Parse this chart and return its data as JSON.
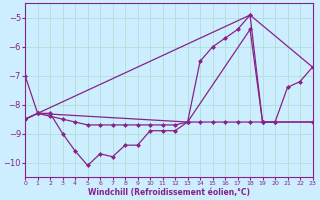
{
  "xlabel": "Windchill (Refroidissement éolien,°C)",
  "background_color": "#cceeff",
  "grid_color": "#aaddcc",
  "line_color": "#882288",
  "xlim": [
    0,
    23
  ],
  "ylim": [
    -10.5,
    -4.5
  ],
  "yticks": [
    -10,
    -9,
    -8,
    -7,
    -6,
    -5
  ],
  "xticks": [
    0,
    1,
    2,
    3,
    4,
    5,
    6,
    7,
    8,
    9,
    10,
    11,
    12,
    13,
    14,
    15,
    16,
    17,
    18,
    19,
    20,
    21,
    22,
    23
  ],
  "line1": {
    "points": [
      [
        0,
        -8.5
      ],
      [
        1,
        -8.3
      ],
      [
        18,
        -4.9
      ],
      [
        23,
        -6.7
      ]
    ]
  },
  "line2": {
    "points": [
      [
        0,
        -8.5
      ],
      [
        1,
        -8.3
      ],
      [
        13,
        -8.6
      ],
      [
        18,
        -5.4
      ],
      [
        19,
        -8.6
      ],
      [
        20,
        -8.6
      ],
      [
        23,
        -8.6
      ]
    ]
  },
  "line3": {
    "points": [
      [
        0,
        -7.0
      ],
      [
        1,
        -8.3
      ],
      [
        2,
        -8.3
      ],
      [
        3,
        -9.0
      ],
      [
        4,
        -9.6
      ],
      [
        5,
        -10.1
      ],
      [
        6,
        -9.7
      ],
      [
        7,
        -9.8
      ],
      [
        8,
        -9.4
      ],
      [
        9,
        -9.4
      ],
      [
        10,
        -8.9
      ],
      [
        11,
        -8.9
      ],
      [
        12,
        -8.9
      ],
      [
        13,
        -8.6
      ],
      [
        14,
        -6.5
      ],
      [
        15,
        -6.0
      ],
      [
        16,
        -5.7
      ],
      [
        17,
        -5.4
      ],
      [
        18,
        -4.9
      ],
      [
        19,
        -8.6
      ],
      [
        20,
        -8.6
      ],
      [
        21,
        -7.4
      ],
      [
        22,
        -7.2
      ],
      [
        23,
        -6.7
      ]
    ]
  },
  "line4": {
    "points": [
      [
        0,
        -8.5
      ],
      [
        1,
        -8.3
      ],
      [
        2,
        -8.4
      ],
      [
        3,
        -8.5
      ],
      [
        4,
        -8.6
      ],
      [
        5,
        -8.7
      ],
      [
        6,
        -8.7
      ],
      [
        7,
        -8.7
      ],
      [
        8,
        -8.7
      ],
      [
        9,
        -8.7
      ],
      [
        10,
        -8.7
      ],
      [
        11,
        -8.7
      ],
      [
        12,
        -8.7
      ],
      [
        13,
        -8.6
      ],
      [
        14,
        -8.6
      ],
      [
        15,
        -8.6
      ],
      [
        16,
        -8.6
      ],
      [
        17,
        -8.6
      ],
      [
        18,
        -8.6
      ],
      [
        19,
        -8.6
      ],
      [
        20,
        -8.6
      ],
      [
        23,
        -8.6
      ]
    ]
  }
}
